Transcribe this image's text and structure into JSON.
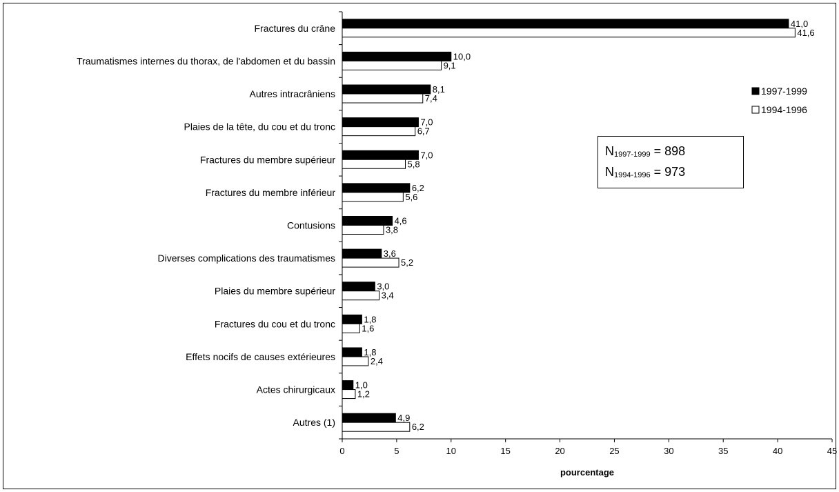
{
  "chart_data": {
    "type": "bar",
    "orientation": "horizontal",
    "categories": [
      "Fractures du crâne",
      "Traumatismes internes du thorax, de l'abdomen et du bassin",
      "Autres intracrâniens",
      "Plaies de la tête, du cou et du tronc",
      "Fractures du membre supérieur",
      "Fractures du membre inférieur",
      "Contusions",
      "Diverses complications des traumatismes",
      "Plaies du membre supérieur",
      "Fractures du cou et du tronc",
      "Effets nocifs de causes extérieures",
      "Actes chirurgicaux",
      "Autres (1)"
    ],
    "series": [
      {
        "name": "1997-1999",
        "color": "#000000",
        "values": [
          41.0,
          10.0,
          8.1,
          7.0,
          7.0,
          6.2,
          4.6,
          3.6,
          3.0,
          1.8,
          1.8,
          1.0,
          4.9
        ],
        "labels": [
          "41,0",
          "10,0",
          "8,1",
          "7,0",
          "7,0",
          "6,2",
          "4,6",
          "3,6",
          "3,0",
          "1,8",
          "1,8",
          "1,0",
          "4,9"
        ]
      },
      {
        "name": "1994-1996",
        "color": "#ffffff",
        "values": [
          41.6,
          9.1,
          7.4,
          6.7,
          5.8,
          5.6,
          3.8,
          5.2,
          3.4,
          1.6,
          2.4,
          1.2,
          6.2
        ],
        "labels": [
          "41,6",
          "9,1",
          "7,4",
          "6,7",
          "5,8",
          "5,6",
          "3,8",
          "5,2",
          "3,4",
          "1,6",
          "2,4",
          "1,2",
          "6,2"
        ]
      }
    ],
    "xlabel": "pourcentage",
    "ylabel": "",
    "xlim": [
      0,
      45
    ],
    "xticks": [
      0,
      5,
      10,
      15,
      20,
      25,
      30,
      35,
      40,
      45
    ],
    "grid": false,
    "legend_position": "right"
  },
  "annotation": {
    "n_prefix": "N",
    "n1_sub": "1997-1999",
    "n1_value": " = 898",
    "n2_sub": "1994-1996",
    "n2_value": " = 973"
  }
}
